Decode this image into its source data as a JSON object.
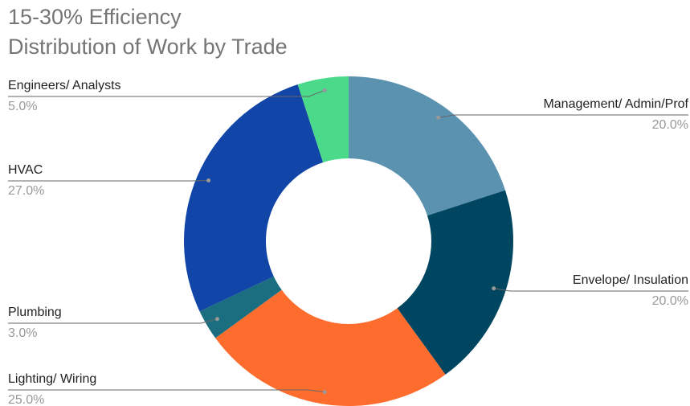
{
  "chart_data": {
    "type": "pie",
    "title": "15-30% Efficiency",
    "subtitle": "Distribution of Work by Trade",
    "categories": [
      "Management/ Admin/Prof",
      "Envelope/ Insulation",
      "Lighting/ Wiring",
      "Plumbing",
      "HVAC",
      "Engineers/ Analysts"
    ],
    "values": [
      20,
      20,
      25,
      3,
      27,
      5
    ],
    "value_labels": [
      "20.0%",
      "20.0%",
      "25.0%",
      "3.0%",
      "27.0%",
      "5.0%"
    ],
    "colors": [
      "#5b92b0",
      "#004660",
      "#ff6d2e",
      "#1b6e80",
      "#1245a8",
      "#4bd98a"
    ],
    "donut": true
  }
}
